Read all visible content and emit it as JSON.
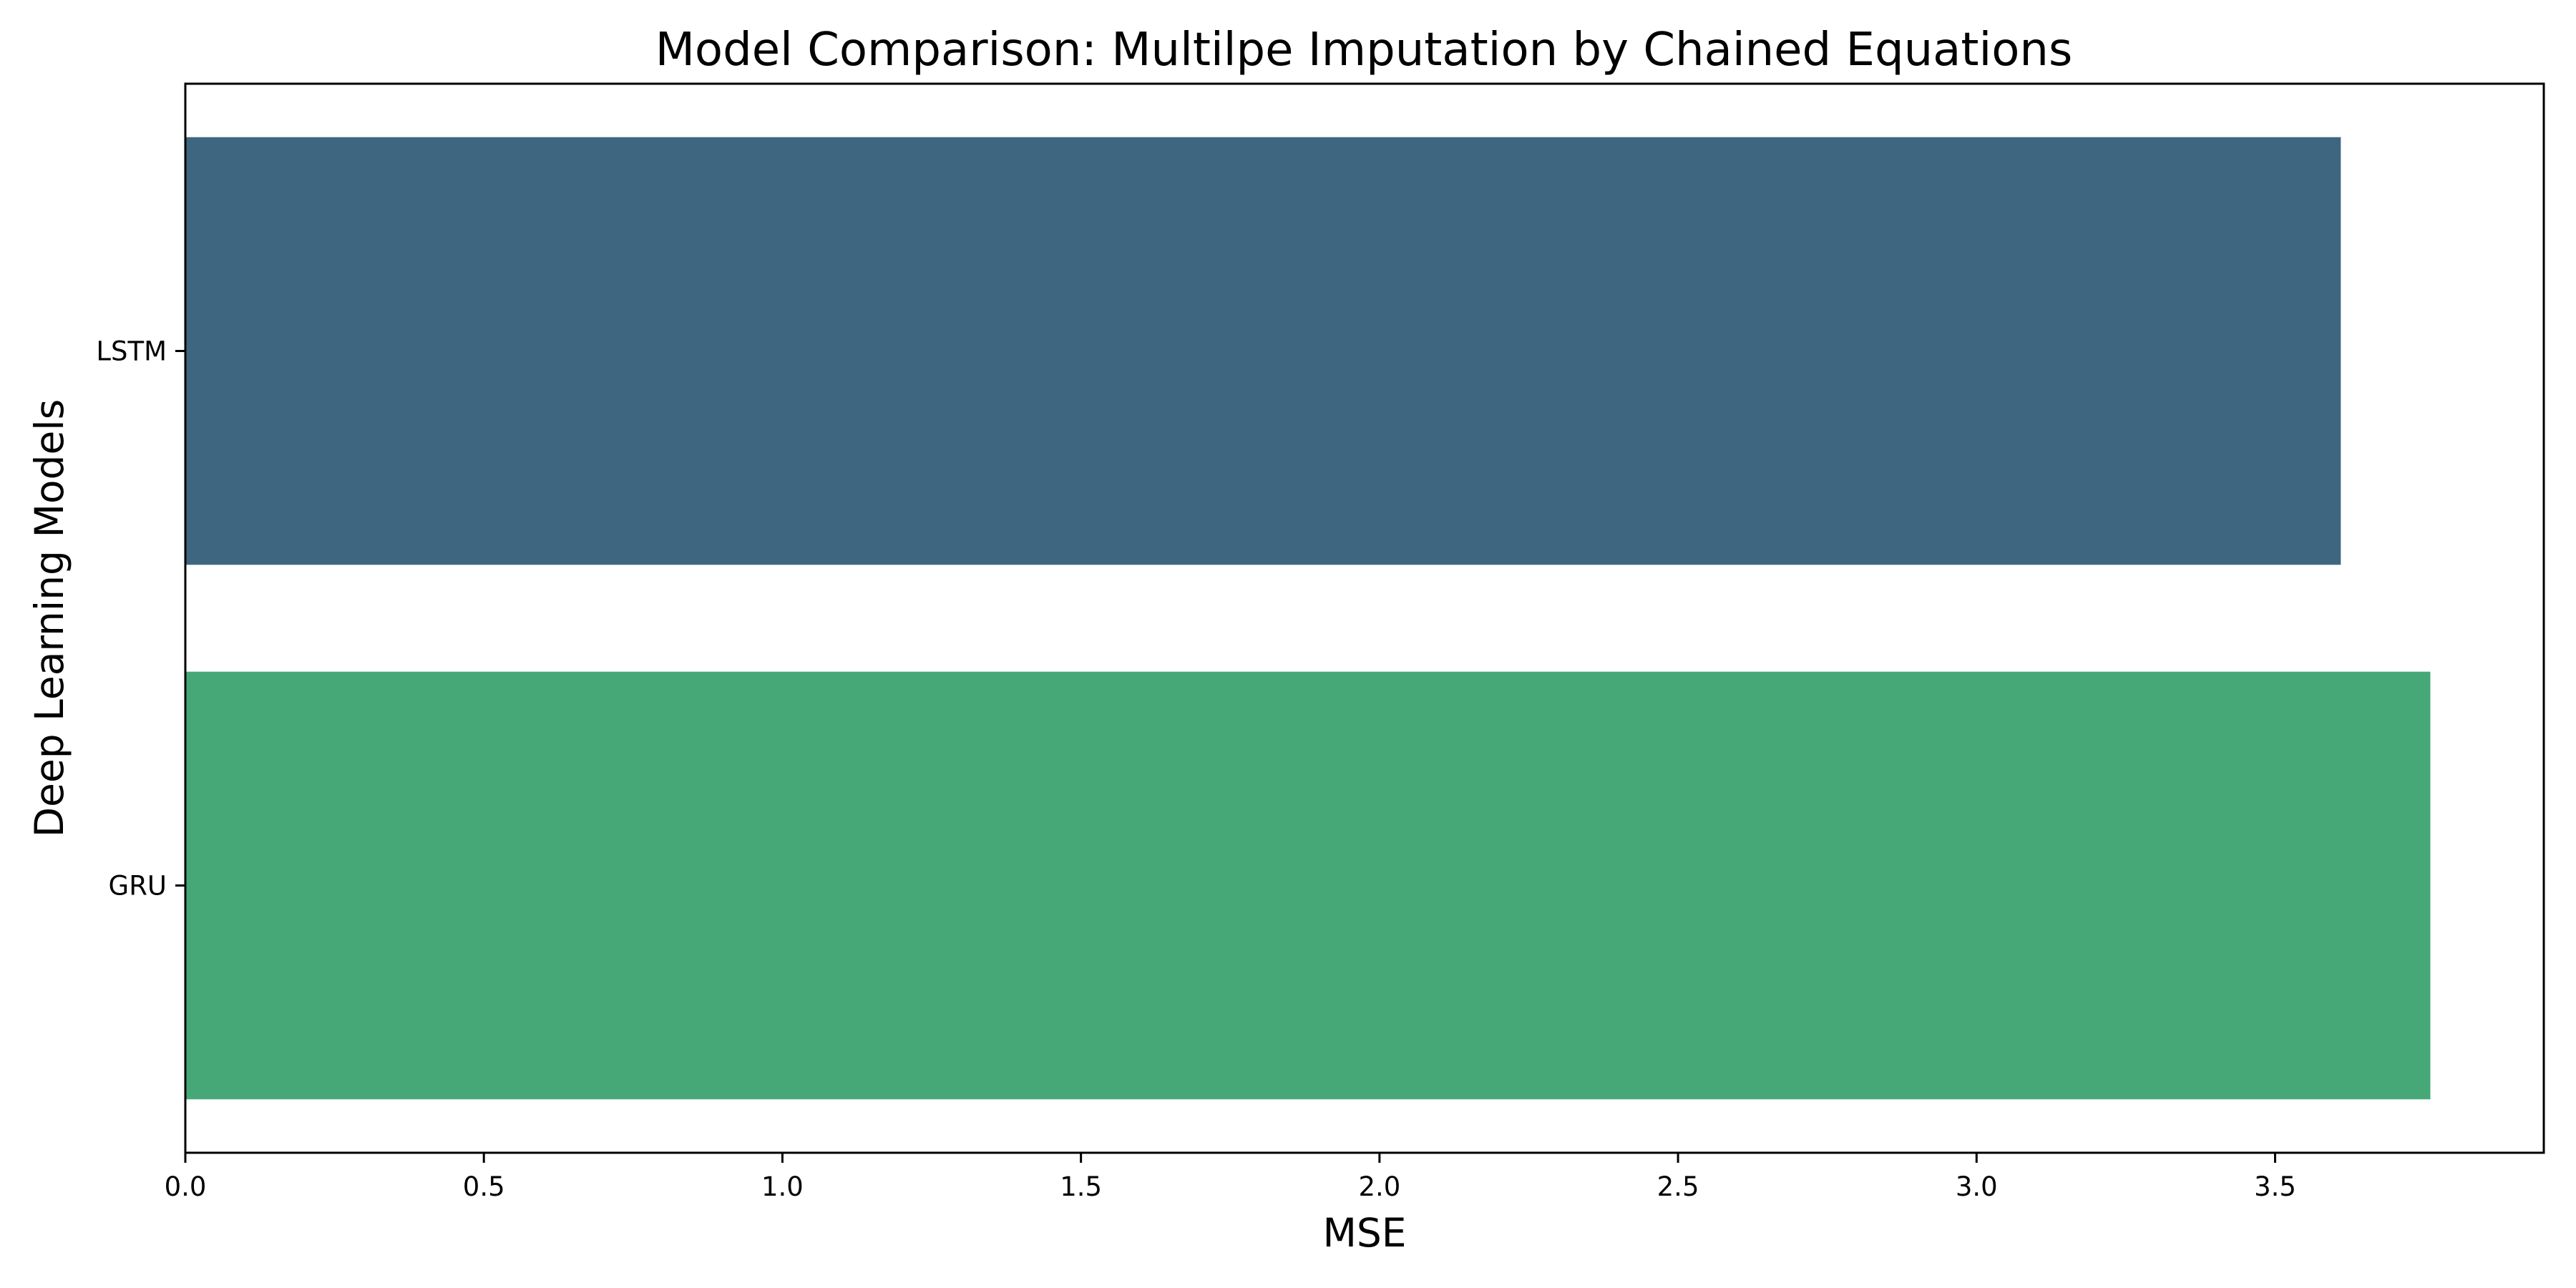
{
  "chart_data": {
    "type": "bar",
    "orientation": "horizontal",
    "title": "Model Comparison: Multilpe Imputation by Chained Equations",
    "xlabel": "MSE",
    "ylabel": "Deep Learning Models",
    "categories": [
      "LSTM",
      "GRU"
    ],
    "values": [
      3.61,
      3.76
    ],
    "colors": [
      "#3e6680",
      "#46a877"
    ],
    "xlim": [
      0,
      3.95
    ],
    "xticks": [
      0.0,
      0.5,
      1.0,
      1.5,
      2.0,
      2.5,
      3.0,
      3.5
    ],
    "xtick_labels": [
      "0.0",
      "0.5",
      "1.0",
      "1.5",
      "2.0",
      "2.5",
      "3.0",
      "3.5"
    ],
    "grid": false,
    "legend": "none"
  }
}
